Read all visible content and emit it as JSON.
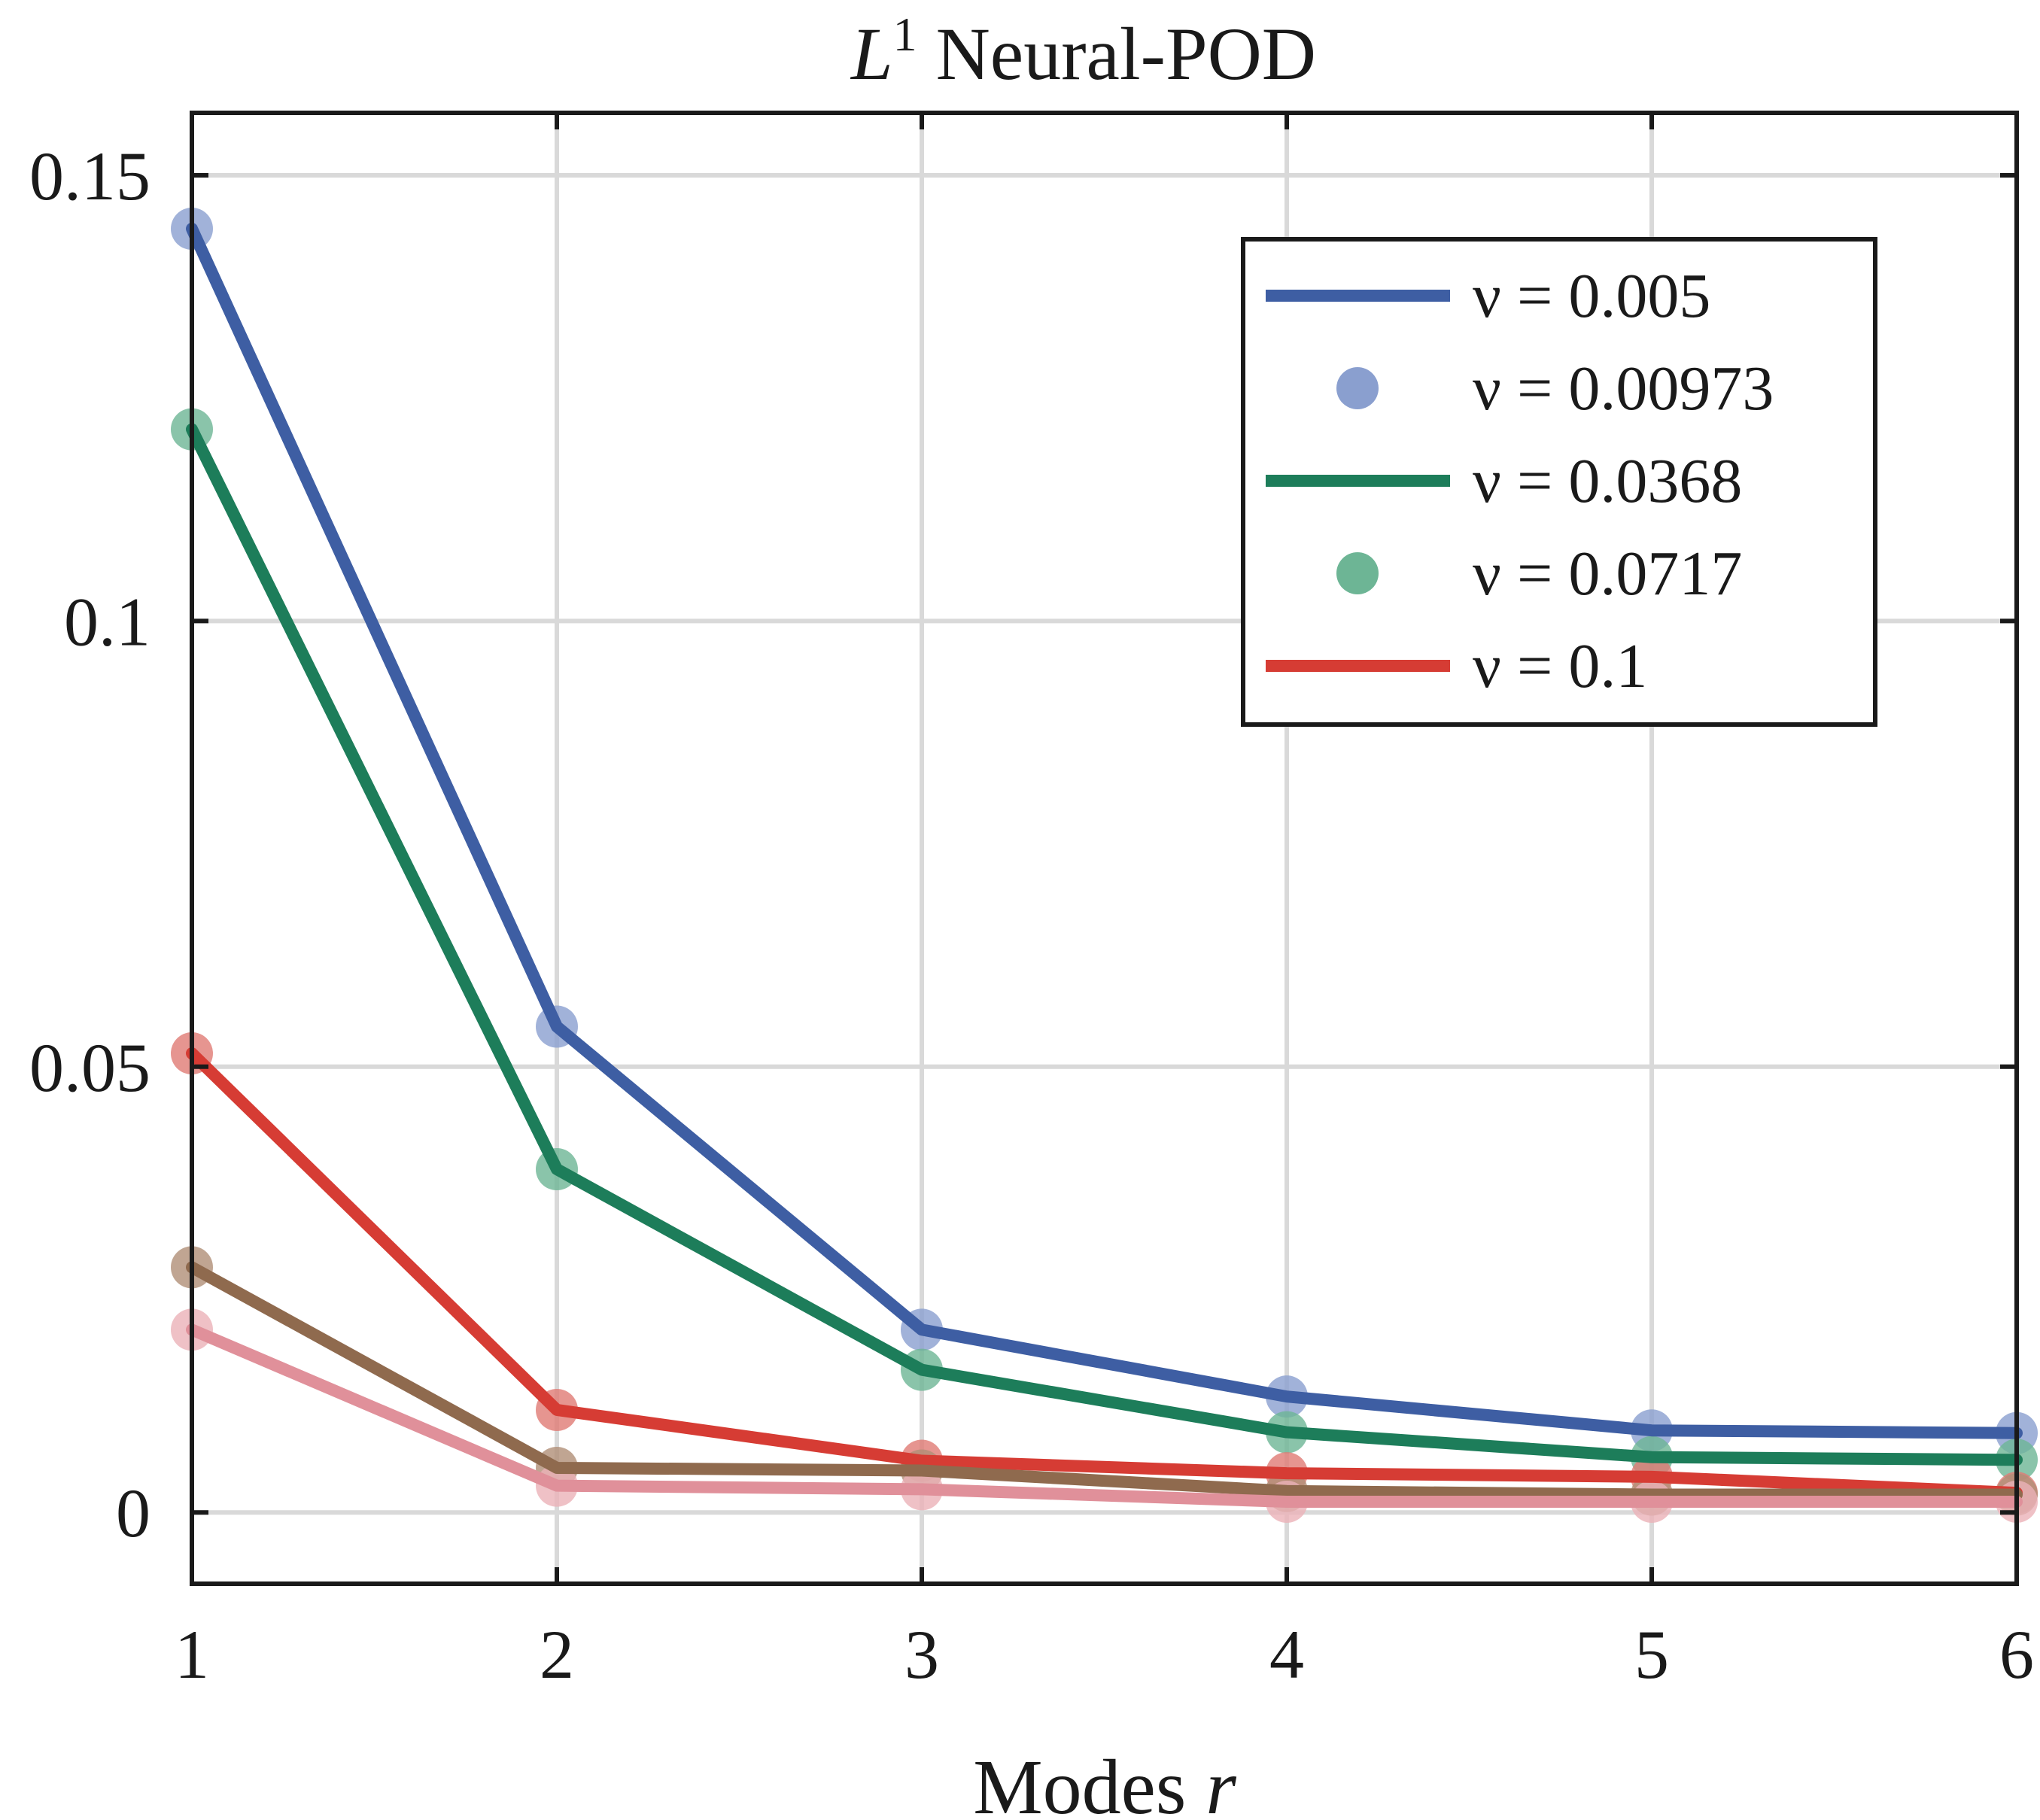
{
  "chart_data": {
    "type": "line",
    "title": "L",
    "title_sup": "1",
    "title_rest": " Neural-POD",
    "xlabel": "Modes ",
    "xlabel_var": "r",
    "ylabel": "",
    "x": [
      1,
      2,
      3,
      4,
      5,
      6
    ],
    "xlim": [
      1,
      6
    ],
    "ylim": [
      -0.008,
      0.157
    ],
    "xticks": [
      "1",
      "2",
      "3",
      "4",
      "5",
      "6"
    ],
    "yticks": [
      {
        "value": 0,
        "label": "0"
      },
      {
        "value": 0.05,
        "label": "0.05"
      },
      {
        "value": 0.1,
        "label": "0.1"
      },
      {
        "value": 0.15,
        "label": "0.15"
      }
    ],
    "grid": true,
    "legend_position": "top-right",
    "series": [
      {
        "name": "ν = 0.005",
        "style": "line",
        "color": "#3e5ea3",
        "marker_color": "#8a9fcf",
        "values": [
          0.144,
          0.0545,
          0.0205,
          0.013,
          0.0092,
          0.0089
        ]
      },
      {
        "name": "ν = 0.00973",
        "style": "marker",
        "color": "#8a9fcf",
        "legend": true,
        "values": [
          0.144,
          0.0545,
          0.0205,
          0.013,
          0.0092,
          0.0089
        ]
      },
      {
        "name": "ν = 0.0368",
        "style": "line",
        "color": "#1d7d5a",
        "marker_color": "#6db595",
        "values": [
          0.1215,
          0.0385,
          0.016,
          0.009,
          0.0062,
          0.0059
        ]
      },
      {
        "name": "ν = 0.0717",
        "style": "marker",
        "color": "#6db595",
        "legend": true,
        "values": [
          0.1215,
          0.0385,
          0.016,
          0.009,
          0.0062,
          0.0059
        ]
      },
      {
        "name": "ν = 0.1",
        "style": "line",
        "color": "#d63c34",
        "marker_color": "#e07a74",
        "values": [
          0.0515,
          0.0115,
          0.0058,
          0.0044,
          0.004,
          0.0022
        ]
      },
      {
        "name": "",
        "style": "line",
        "color": "#8f6a4e",
        "marker_color": "#b08f77",
        "legend": false,
        "values": [
          0.0275,
          0.005,
          0.0047,
          0.0024,
          0.002,
          0.002
        ]
      },
      {
        "name": "",
        "style": "line",
        "color": "#e0909a",
        "marker_color": "#ebb1b8",
        "legend": false,
        "values": [
          0.0205,
          0.003,
          0.0026,
          0.0012,
          0.0012,
          0.0012
        ]
      }
    ]
  }
}
